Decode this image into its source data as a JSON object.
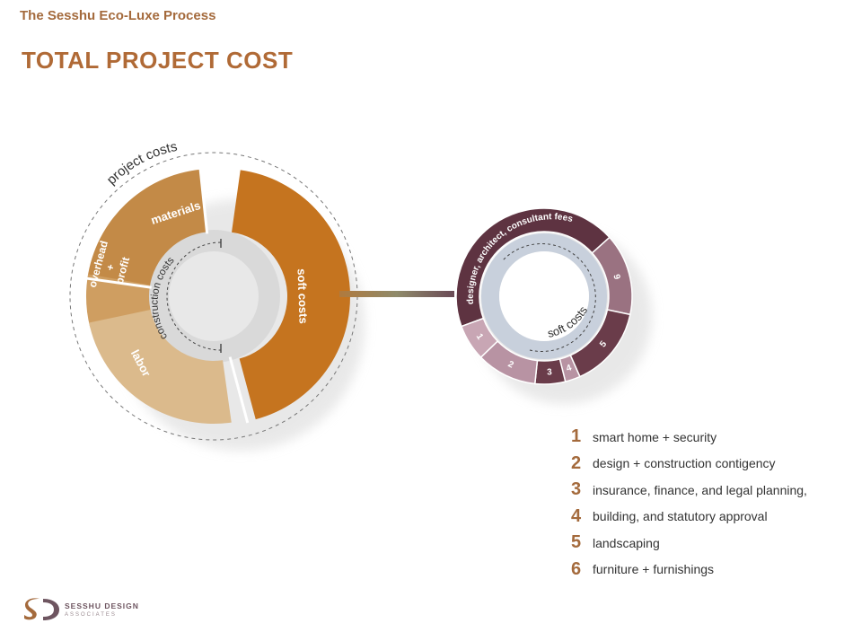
{
  "header": {
    "kicker": "The Sesshu Eco-Luxe Process",
    "title": "TOTAL PROJECT COST"
  },
  "diagram": {
    "outer_ring_label": "project costs",
    "inner_ring_label": "construction costs",
    "soft_ring_label": "soft costs",
    "main_segments": [
      {
        "key": "materials",
        "label": "materials",
        "color": "#c38a47"
      },
      {
        "key": "overhead",
        "label": "overhead + profit",
        "color": "#cf9e61"
      },
      {
        "key": "labor",
        "label": "labor",
        "color": "#dbba8c"
      },
      {
        "key": "soft",
        "label": "soft costs",
        "color": "#c5741f"
      }
    ],
    "soft_segments": [
      {
        "key": "designer",
        "label": "designer, architect, consultant fees",
        "color": "#5e3341"
      },
      {
        "key": "s6",
        "label": "6",
        "color": "#9a7281"
      },
      {
        "key": "s5",
        "label": "5",
        "color": "#6a3c4a"
      },
      {
        "key": "s4",
        "label": "4",
        "color": "#b893a3"
      },
      {
        "key": "s3",
        "label": "3",
        "color": "#6a3c4a"
      },
      {
        "key": "s2",
        "label": "2",
        "color": "#b893a3"
      },
      {
        "key": "s1",
        "label": "1",
        "color": "#c8a6b4"
      }
    ]
  },
  "legend": [
    {
      "num": "1",
      "text": "smart home + security"
    },
    {
      "num": "2",
      "text": "design + construction contigency"
    },
    {
      "num": "3",
      "text": "insurance, finance, and legal planning,"
    },
    {
      "num": "4",
      "text": "building, and statutory approval"
    },
    {
      "num": "5",
      "text": "landscaping"
    },
    {
      "num": "6",
      "text": "furniture + furnishings"
    }
  ],
  "logo": {
    "name": "SESSHU DESIGN",
    "sub": "ASSOCIATES",
    "colors": [
      "#a46a3c",
      "#6e5560"
    ]
  }
}
